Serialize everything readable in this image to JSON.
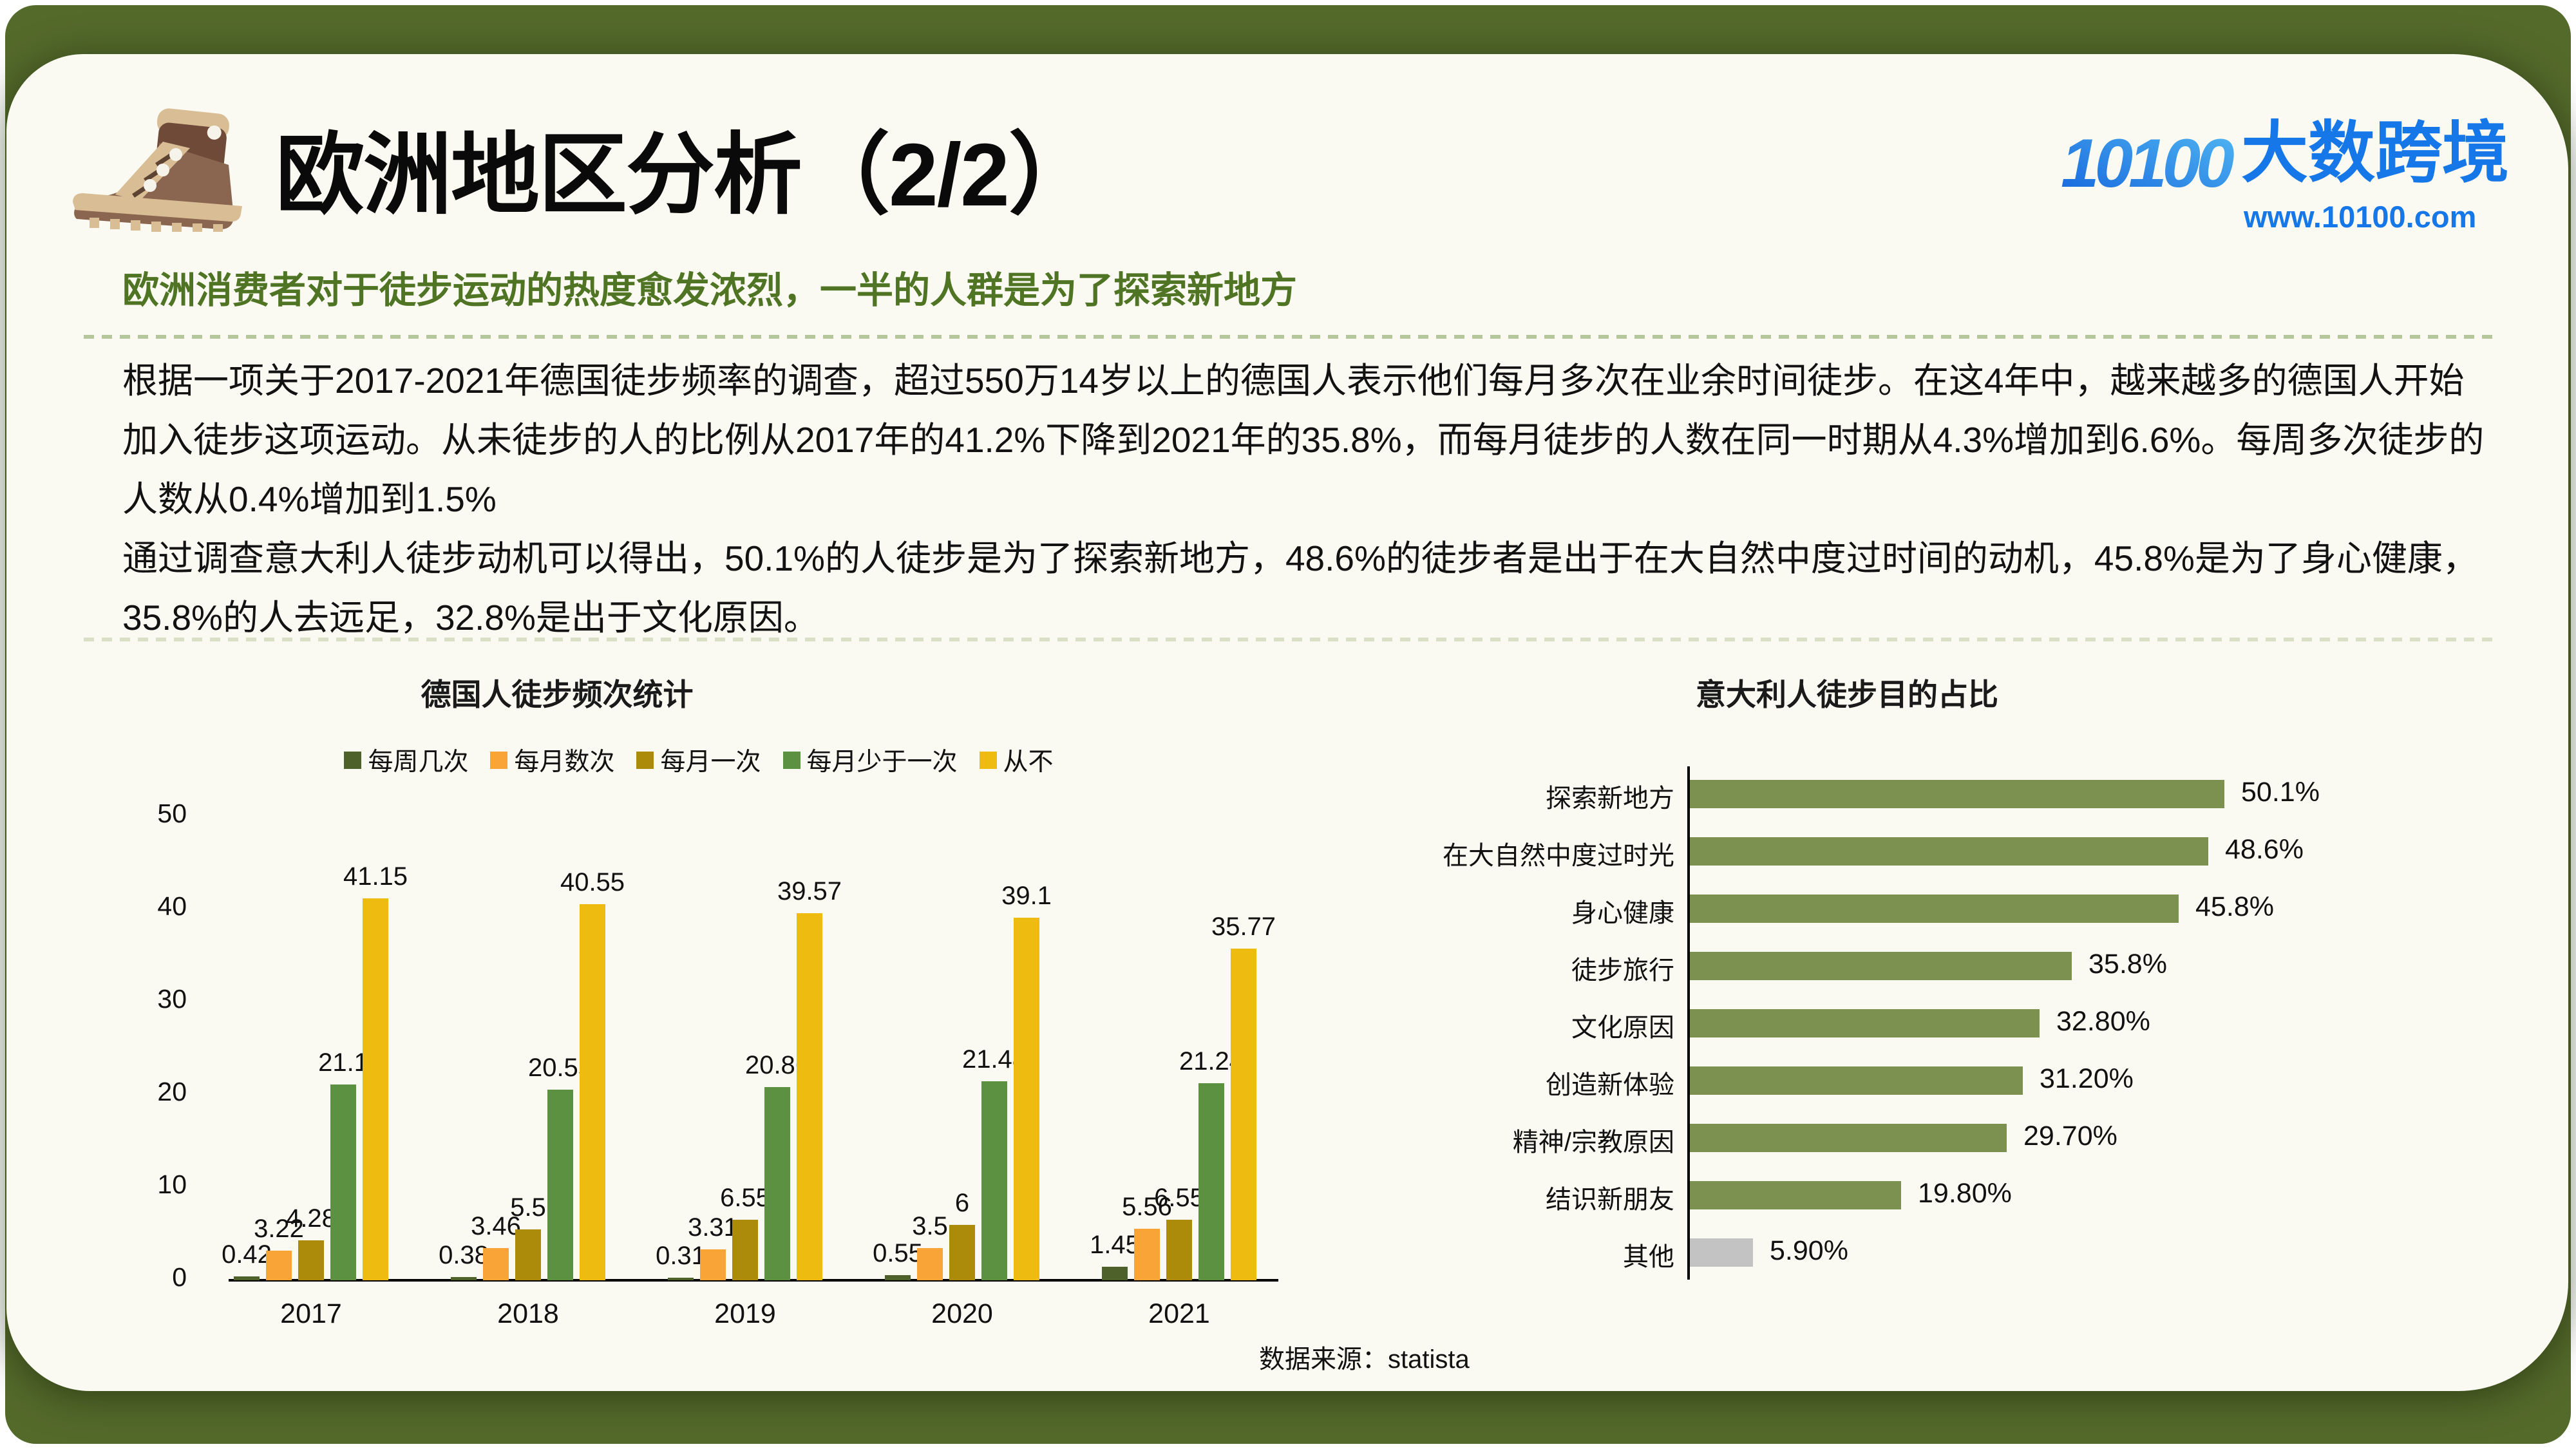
{
  "page": {
    "title": "欧洲地区分析（2/2）",
    "subtitle": "欧洲消费者对于徒步运动的热度愈发浓烈，一半的人群是为了探索新地方",
    "paragraphs": [
      "根据一项关于2017-2021年德国徒步频率的调查，超过550万14岁以上的德国人表示他们每月多次在业余时间徒步。在这4年中，越来越多的德国人开始加入徒步这项运动。从未徒步的人的比例从2017年的41.2%下降到2021年的35.8%，而每月徒步的人数在同一时期从4.3%增加到6.6%。每周多次徒步的人数从0.4%增加到1.5%",
      "通过调查意大利人徒步动机可以得出，50.1%的人徒步是为了探索新地方，48.6%的徒步者是出于在大自然中度过时间的动机，45.8%是为了身心健康，35.8%的人去远足，32.8%是出于文化原因。"
    ],
    "source_note": "数据来源：statista"
  },
  "logo": {
    "mark_text": "10100",
    "name": "大数跨境",
    "url": "www.10100.com",
    "blue": "#1677e8",
    "blue_light": "#52b9f2"
  },
  "theme": {
    "olive_background": "#546a2b",
    "card_background": "#fbfaf2",
    "subtitle_green": "#4f7424"
  },
  "chart_data": [
    {
      "type": "bar",
      "title": "德国人徒步频次统计",
      "categories": [
        "2017",
        "2018",
        "2019",
        "2020",
        "2021"
      ],
      "series": [
        {
          "name": "每周几次",
          "color": "#4e612a",
          "values": [
            0.42,
            0.38,
            0.31,
            0.55,
            1.45
          ]
        },
        {
          "name": "每月数次",
          "color": "#f8a436",
          "values": [
            3.22,
            3.46,
            3.31,
            3.5,
            5.56
          ]
        },
        {
          "name": "每月一次",
          "color": "#ab8b09",
          "values": [
            4.28,
            5.5,
            6.55,
            6,
            6.55
          ]
        },
        {
          "name": "每月少于一次",
          "color": "#5c9142",
          "values": [
            21.1,
            20.55,
            20.86,
            21.48,
            21.24
          ]
        },
        {
          "name": "从不",
          "color": "#eebc10",
          "values": [
            41.15,
            40.55,
            39.57,
            39.1,
            35.77
          ]
        }
      ],
      "ylim": [
        0,
        50
      ],
      "yticks": [
        0,
        10,
        20,
        30,
        40,
        50
      ],
      "legend_position": "top",
      "grid": false
    },
    {
      "type": "bar-horizontal",
      "title": "意大利人徒步目的占比",
      "categories": [
        "探索新地方",
        "在大自然中度过时光",
        "身心健康",
        "徒步旅行",
        "文化原因",
        "创造新体验",
        "精神/宗教原因",
        "结识新朋友",
        "其他"
      ],
      "values": [
        50.1,
        48.6,
        45.8,
        35.8,
        32.8,
        31.2,
        29.7,
        19.8,
        5.9
      ],
      "labels": [
        "50.1%",
        "48.6%",
        "45.8%",
        "35.8%",
        "32.80%",
        "31.20%",
        "29.70%",
        "19.80%",
        "5.90%"
      ],
      "bar_color": "#7c914f",
      "other_color": "#c3c3c3",
      "xlim": [
        0,
        55
      ]
    }
  ]
}
